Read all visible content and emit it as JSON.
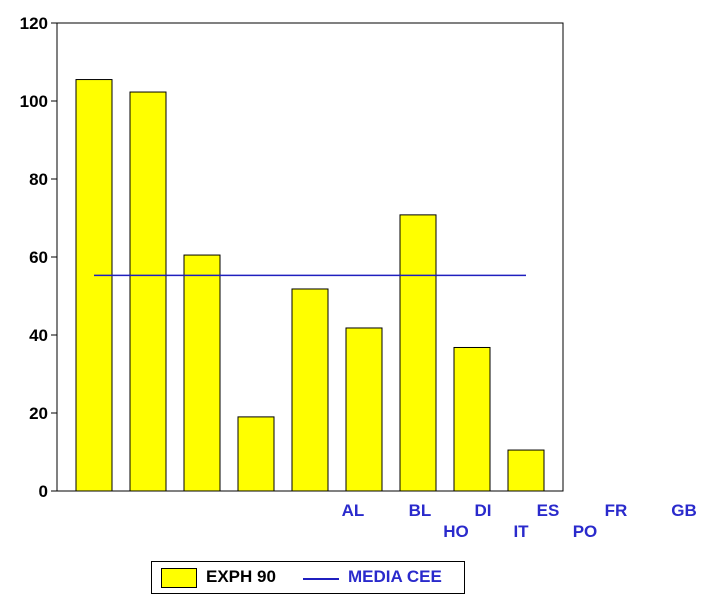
{
  "chart_data": {
    "type": "bar",
    "ylim": [
      0,
      120
    ],
    "yticks": [
      0,
      20,
      40,
      60,
      80,
      100,
      120
    ],
    "ytick_labels": [
      "0",
      "20",
      "40",
      "60",
      "80",
      "100",
      "120"
    ],
    "categories": [
      "AL",
      "BL",
      "DI",
      "ES",
      "FR",
      "GB",
      "HO",
      "IT",
      "PO"
    ],
    "category_labels_top": [
      "AL",
      "BL",
      "DI",
      "ES",
      "FR",
      "GB"
    ],
    "category_labels_bottom": [
      "HO",
      "IT",
      "PO"
    ],
    "series": [
      {
        "name": "EXPH 90",
        "kind": "bar",
        "color": "#ffff00",
        "values": [
          105.5,
          102.3,
          60.5,
          19.0,
          51.8,
          41.8,
          70.8,
          36.8,
          10.5
        ]
      },
      {
        "name": "MEDIA CEE",
        "kind": "line",
        "color": "#1f1fbf",
        "values": [
          55.3,
          55.3,
          55.3,
          55.3,
          55.3,
          55.3,
          55.3,
          55.3,
          55.3
        ]
      }
    ],
    "grid": false,
    "legend_position": "bottom"
  }
}
